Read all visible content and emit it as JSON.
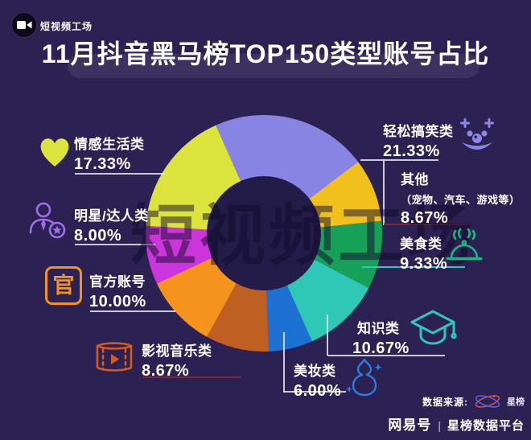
{
  "header": {
    "logo_text": "短视频工场",
    "title": "11月抖音黑马榜TOP150类型账号占比"
  },
  "watermark": {
    "text": "短视频工场"
  },
  "colors": {
    "background": "#2b2152",
    "title_text": "#ffffff",
    "title_pill": "rgba(255,255,255,0.08)"
  },
  "chart_data": {
    "type": "pie",
    "subtype": "donut",
    "title": "11月抖音黑马榜TOP150类型账号占比",
    "unit": "%",
    "start_angle_deg": -24,
    "categories": [
      "轻松搞笑类",
      "其他（宠物、汽车、游戏等）",
      "美食类",
      "知识类",
      "美妆类",
      "影视音乐类",
      "官方账号",
      "明星/达人类",
      "情感生活类"
    ],
    "values": [
      21.33,
      8.67,
      9.33,
      10.67,
      6.0,
      8.67,
      10.0,
      8.0,
      17.33
    ],
    "colors": [
      "#8784e3",
      "#f2c01d",
      "#17a058",
      "#2fc7b5",
      "#1d71d3",
      "#c05f22",
      "#f6921e",
      "#cb35db",
      "#dce33c"
    ],
    "legend_position": "around-chart"
  },
  "legend": {
    "left": [
      {
        "label": "情感生活类",
        "value": "17.33%",
        "icon": "heart-icon"
      },
      {
        "label": "明星/达人类",
        "value": "8.00%",
        "icon": "star-person-icon"
      },
      {
        "label": "官方账号",
        "value": "10.00%",
        "icon": "official-seal-icon"
      },
      {
        "label": "影视音乐类",
        "value": "8.67%",
        "icon": "filmstrip-icon"
      }
    ],
    "right": [
      {
        "label": "轻松搞笑类",
        "value": "21.33%",
        "icon": "clown-icon"
      },
      {
        "label": "其他",
        "sub": "（宠物、汽车、游戏等）",
        "value": "8.67%"
      },
      {
        "label": "美食类",
        "value": "9.33%",
        "icon": "food-cloche-icon"
      },
      {
        "label": "知识类",
        "value": "10.67%",
        "icon": "graduation-cap-icon"
      },
      {
        "label": "美妆类",
        "value": "6.00%",
        "icon": "cosmetic-gourd-icon"
      }
    ]
  },
  "icons": {
    "official_char": "官"
  },
  "footer": {
    "source_label": "数据来源:",
    "xingbang_logo_text": "星榜",
    "netease": "网易号",
    "divider": "|",
    "platform": "星榜数据平台"
  }
}
